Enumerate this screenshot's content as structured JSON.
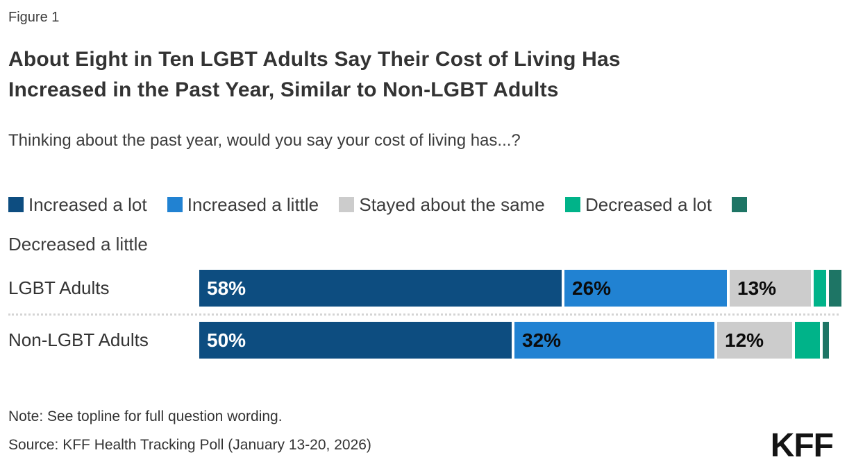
{
  "figure_label": "Figure 1",
  "title_lines": [
    "About Eight in Ten LGBT Adults Say Their Cost of Living Has",
    "Increased in the Past Year, Similar to Non-LGBT Adults"
  ],
  "subtitle": "Thinking about the past year, would you say your cost of living has...?",
  "note": "Note: See topline for full question wording.",
  "source": "Source: KFF Health Tracking Poll (January 13-20, 2026)",
  "logo_text": "KFF",
  "colors": {
    "increased_a_lot": "#0d4d80",
    "increased_a_little": "#2182d2",
    "stayed_about_the_same": "#cccccc",
    "decreased_a_lot": "#00b389",
    "decreased_a_little": "#1e7565"
  },
  "chart_data": {
    "type": "bar",
    "variant": "horizontal-stacked",
    "categories": [
      "LGBT Adults",
      "Non-LGBT Adults"
    ],
    "series": [
      {
        "name": "Increased a lot",
        "color": "#0d4d80",
        "label_color": "#ffffff",
        "values": [
          58,
          50
        ],
        "value_labels": [
          "58%",
          "50%"
        ]
      },
      {
        "name": "Increased a little",
        "color": "#2182d2",
        "label_color": "#0b0b0b",
        "values": [
          26,
          32
        ],
        "value_labels": [
          "26%",
          "32%"
        ]
      },
      {
        "name": "Stayed about the same",
        "color": "#cccccc",
        "label_color": "#0b0b0b",
        "values": [
          13,
          12
        ],
        "value_labels": [
          "13%",
          "12%"
        ]
      },
      {
        "name": "Decreased a lot",
        "color": "#00b389",
        "label_color": "#0b0b0b",
        "values": [
          2,
          4
        ],
        "value_labels": [
          "",
          ""
        ]
      },
      {
        "name": "Decreased a little",
        "color": "#1e7565",
        "label_color": "#ffffff",
        "values": [
          2,
          1
        ],
        "value_labels": [
          "",
          ""
        ]
      }
    ],
    "xlim": [
      0,
      100
    ],
    "axis_hidden": true,
    "legend_position": "top"
  }
}
